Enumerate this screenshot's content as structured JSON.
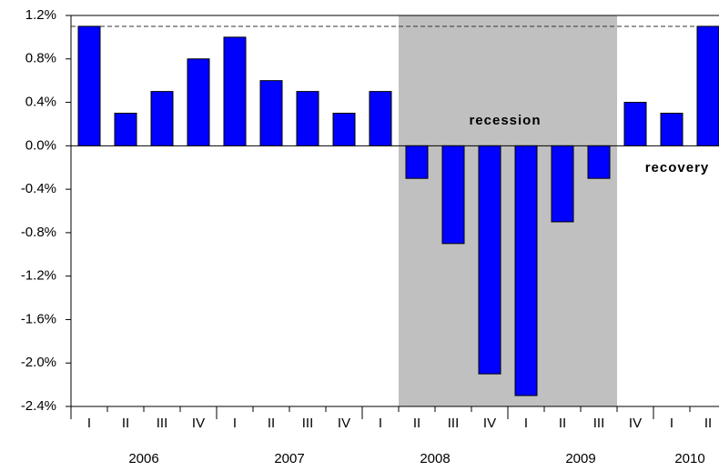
{
  "chart_data": {
    "type": "bar",
    "categories": [
      "I",
      "II",
      "III",
      "IV",
      "I",
      "II",
      "III",
      "IV",
      "I",
      "II",
      "III",
      "IV",
      "I",
      "II",
      "III",
      "IV",
      "I",
      "II"
    ],
    "years": [
      "2006",
      "2007",
      "2008",
      "2009",
      "2010"
    ],
    "values": [
      1.1,
      0.3,
      0.5,
      0.8,
      1.0,
      0.6,
      0.5,
      0.3,
      0.5,
      -0.3,
      -0.9,
      -2.1,
      -2.3,
      -0.7,
      -0.3,
      0.4,
      0.3,
      1.1
    ],
    "color": "#0000ff",
    "ylim": [
      -2.4,
      1.2
    ],
    "yticks": [
      {
        "value": 1.2,
        "label": "1.2%"
      },
      {
        "value": 0.8,
        "label": "0.8%"
      },
      {
        "value": 0.4,
        "label": "0.4%"
      },
      {
        "value": 0.0,
        "label": "0.0%"
      },
      {
        "value": -0.4,
        "label": "-0.4%"
      },
      {
        "value": -0.8,
        "label": "-0.8%"
      },
      {
        "value": -1.2,
        "label": "-1.2%"
      },
      {
        "value": -1.6,
        "label": "-1.6%"
      },
      {
        "value": -2.0,
        "label": "-2.0%"
      },
      {
        "value": -2.4,
        "label": "-2.4%"
      }
    ],
    "reference_line": 1.1,
    "annotations": [
      "recession",
      "recovery"
    ]
  }
}
